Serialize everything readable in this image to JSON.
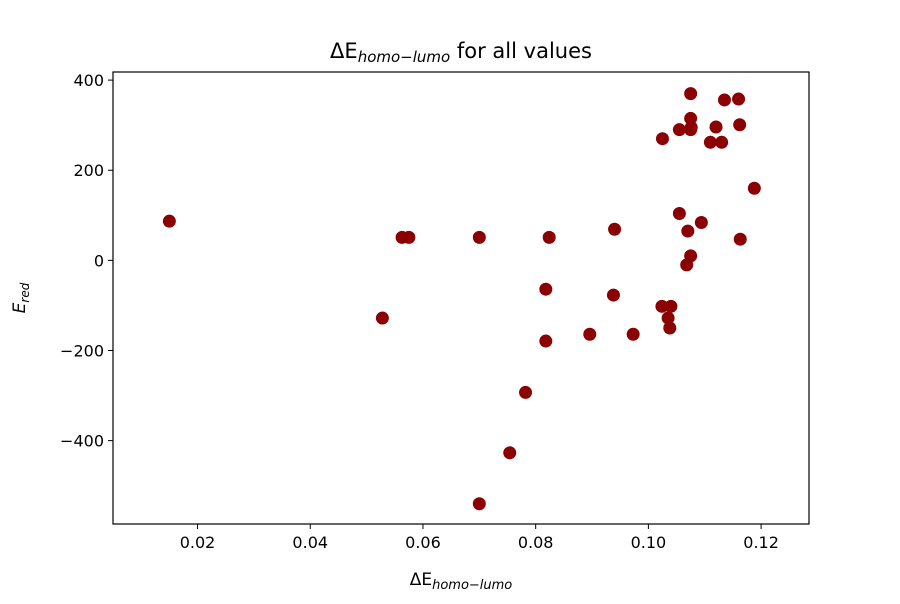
{
  "chart_data": {
    "type": "scatter",
    "title": {
      "prefix": "ΔE",
      "subscript": "homo−lumo",
      "suffix": " for all values"
    },
    "xlabel": {
      "prefix": "ΔE",
      "subscript": "homo−lumo"
    },
    "ylabel": {
      "prefix": "E",
      "subscript": "red"
    },
    "xlim": [
      0.005,
      0.1285
    ],
    "ylim": [
      -585,
      418
    ],
    "xticks": [
      0.02,
      0.04,
      0.06,
      0.08,
      0.1,
      0.12
    ],
    "xtick_labels": [
      "0.02",
      "0.04",
      "0.06",
      "0.08",
      "0.10",
      "0.12"
    ],
    "yticks": [
      400,
      200,
      0,
      -200,
      -400
    ],
    "ytick_labels": [
      "400",
      "200",
      "0",
      "−200",
      "−400"
    ],
    "grid": false,
    "marker_color": "#8b0000",
    "points": [
      {
        "x": 0.015,
        "y": 87
      },
      {
        "x": 0.0528,
        "y": -128
      },
      {
        "x": 0.0563,
        "y": 51
      },
      {
        "x": 0.0575,
        "y": 51
      },
      {
        "x": 0.07,
        "y": 51
      },
      {
        "x": 0.07,
        "y": -540
      },
      {
        "x": 0.0754,
        "y": -427
      },
      {
        "x": 0.0782,
        "y": -293
      },
      {
        "x": 0.0818,
        "y": -179
      },
      {
        "x": 0.0818,
        "y": -64
      },
      {
        "x": 0.0824,
        "y": 51
      },
      {
        "x": 0.0896,
        "y": -164
      },
      {
        "x": 0.0938,
        "y": -77
      },
      {
        "x": 0.094,
        "y": 69
      },
      {
        "x": 0.0973,
        "y": -164
      },
      {
        "x": 0.1024,
        "y": -102
      },
      {
        "x": 0.1025,
        "y": 270
      },
      {
        "x": 0.1035,
        "y": -128
      },
      {
        "x": 0.1038,
        "y": -150
      },
      {
        "x": 0.104,
        "y": -102
      },
      {
        "x": 0.1055,
        "y": 104
      },
      {
        "x": 0.1055,
        "y": 290
      },
      {
        "x": 0.1068,
        "y": -10
      },
      {
        "x": 0.107,
        "y": 65
      },
      {
        "x": 0.1075,
        "y": 10
      },
      {
        "x": 0.1075,
        "y": 290
      },
      {
        "x": 0.1076,
        "y": 295
      },
      {
        "x": 0.1075,
        "y": 315
      },
      {
        "x": 0.1075,
        "y": 370
      },
      {
        "x": 0.1094,
        "y": 84
      },
      {
        "x": 0.111,
        "y": 262
      },
      {
        "x": 0.112,
        "y": 296
      },
      {
        "x": 0.113,
        "y": 262
      },
      {
        "x": 0.1135,
        "y": 356
      },
      {
        "x": 0.116,
        "y": 358
      },
      {
        "x": 0.1162,
        "y": 301
      },
      {
        "x": 0.1163,
        "y": 47
      },
      {
        "x": 0.1188,
        "y": 160
      }
    ]
  }
}
